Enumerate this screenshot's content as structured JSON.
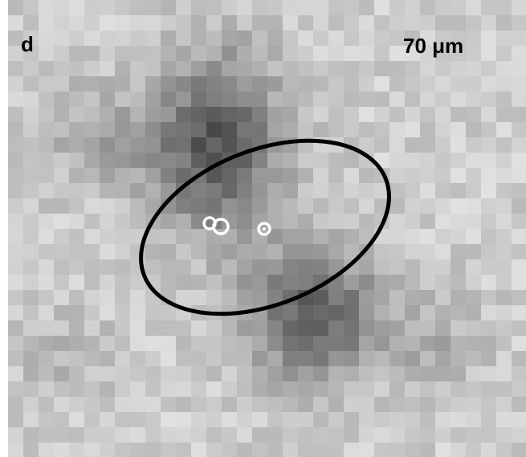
{
  "panel_label": "d",
  "band_label": "70 μm"
}
